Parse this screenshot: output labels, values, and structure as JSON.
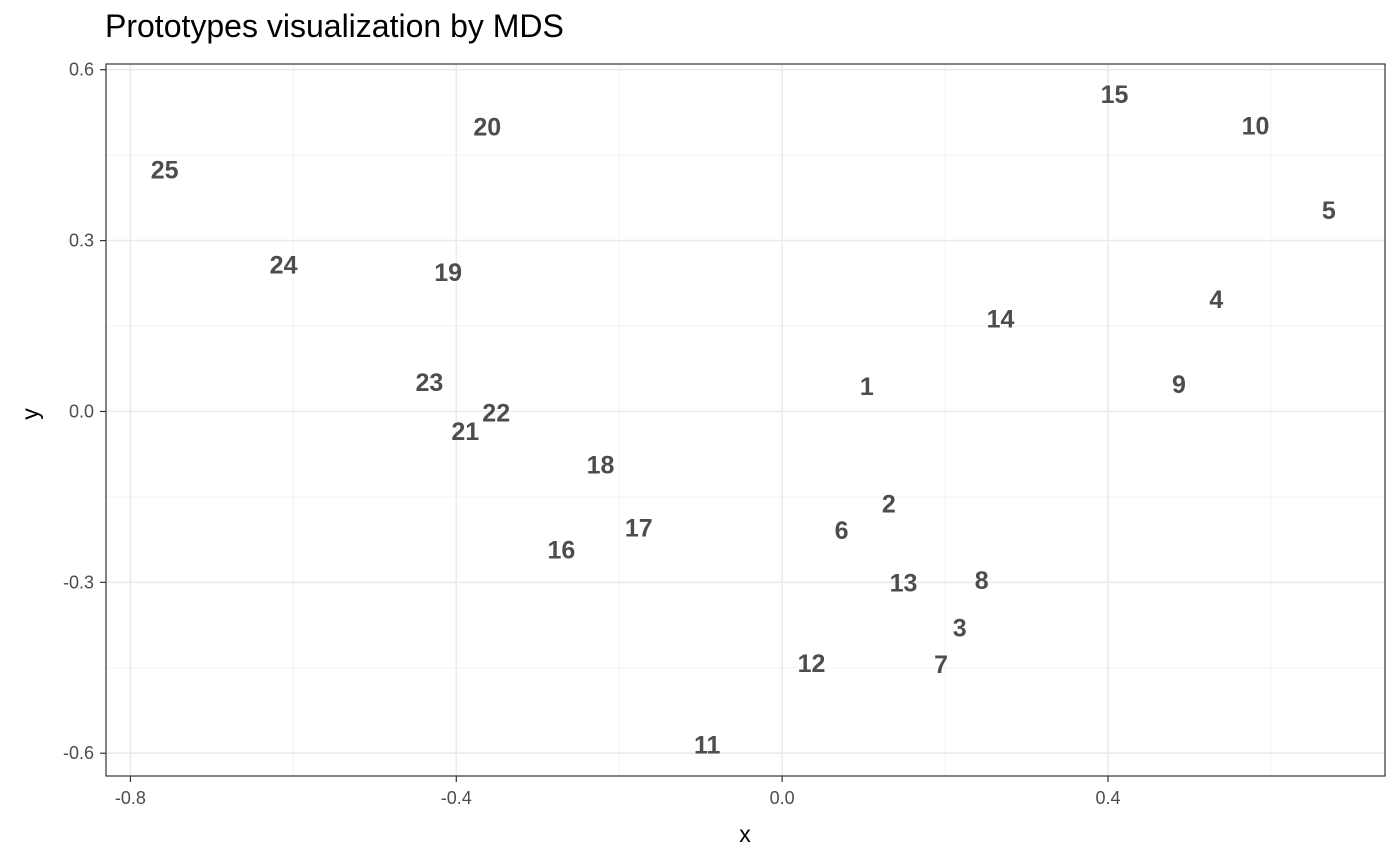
{
  "chart_data": {
    "type": "scatter",
    "title": "Prototypes visualization by MDS",
    "xlabel": "x",
    "ylabel": "y",
    "xlim": [
      -0.83,
      0.74
    ],
    "ylim": [
      -0.64,
      0.61
    ],
    "x_ticks": [
      -0.8,
      -0.4,
      0.0,
      0.4
    ],
    "x_tick_labels": [
      "-0.8",
      "-0.4",
      "0.0",
      "0.4"
    ],
    "y_ticks": [
      -0.6,
      -0.3,
      0.0,
      0.3,
      0.6
    ],
    "y_tick_labels": [
      "-0.6",
      "-0.3",
      "0.0",
      "0.3",
      "0.6"
    ],
    "grid": true,
    "points": [
      {
        "label": "1",
        "x": 0.104,
        "y": 0.045
      },
      {
        "label": "2",
        "x": 0.131,
        "y": -0.162
      },
      {
        "label": "3",
        "x": 0.218,
        "y": -0.379
      },
      {
        "label": "4",
        "x": 0.533,
        "y": 0.197
      },
      {
        "label": "5",
        "x": 0.671,
        "y": 0.354
      },
      {
        "label": "6",
        "x": 0.073,
        "y": -0.208
      },
      {
        "label": "7",
        "x": 0.195,
        "y": -0.443
      },
      {
        "label": "8",
        "x": 0.245,
        "y": -0.296
      },
      {
        "label": "9",
        "x": 0.487,
        "y": 0.048
      },
      {
        "label": "10",
        "x": 0.581,
        "y": 0.502
      },
      {
        "label": "11",
        "x": -0.092,
        "y": -0.585
      },
      {
        "label": "12",
        "x": 0.036,
        "y": -0.442
      },
      {
        "label": "13",
        "x": 0.149,
        "y": -0.3
      },
      {
        "label": "14",
        "x": 0.268,
        "y": 0.163
      },
      {
        "label": "15",
        "x": 0.408,
        "y": 0.557
      },
      {
        "label": "16",
        "x": -0.271,
        "y": -0.242
      },
      {
        "label": "17",
        "x": -0.176,
        "y": -0.204
      },
      {
        "label": "18",
        "x": -0.223,
        "y": -0.093
      },
      {
        "label": "19",
        "x": -0.41,
        "y": 0.245
      },
      {
        "label": "20",
        "x": -0.362,
        "y": 0.5
      },
      {
        "label": "21",
        "x": -0.389,
        "y": -0.034
      },
      {
        "label": "22",
        "x": -0.351,
        "y": -0.002
      },
      {
        "label": "23",
        "x": -0.433,
        "y": 0.052
      },
      {
        "label": "24",
        "x": -0.612,
        "y": 0.258
      },
      {
        "label": "25",
        "x": -0.758,
        "y": 0.425
      }
    ],
    "colors": {
      "panel_border": "#333333",
      "grid_major": "#ebebeb",
      "grid_minor": "#f3f3f3",
      "label_text": "#4d4d4d"
    }
  }
}
